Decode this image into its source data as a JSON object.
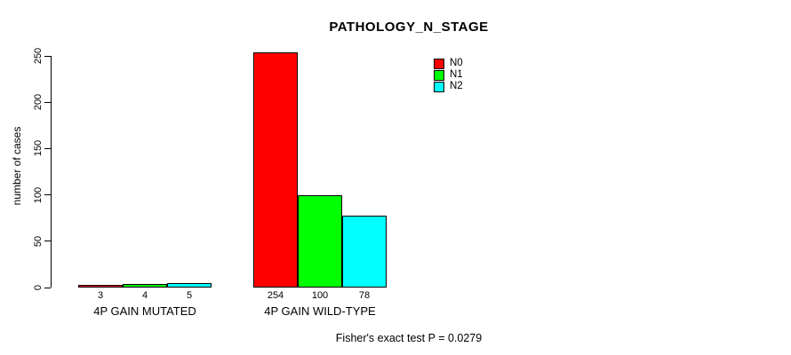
{
  "chart_data": {
    "type": "bar",
    "title": "PATHOLOGY_N_STAGE",
    "ylabel": "number of cases",
    "xlabel": "",
    "ylim": [
      0,
      250
    ],
    "yticks": [
      0,
      50,
      100,
      150,
      200,
      250
    ],
    "grid": false,
    "legend_position": "top-right",
    "categories": [
      "4P GAIN MUTATED",
      "4P GAIN WILD-TYPE"
    ],
    "series": [
      {
        "name": "N0",
        "color": "#ff0000",
        "values": [
          3,
          254
        ]
      },
      {
        "name": "N1",
        "color": "#00ff00",
        "values": [
          4,
          100
        ]
      },
      {
        "name": "N2",
        "color": "#00ffff",
        "values": [
          5,
          78
        ]
      }
    ],
    "bar_value_labels": [
      [
        "3",
        "4",
        "5"
      ],
      [
        "254",
        "100",
        "78"
      ]
    ],
    "footnote": "Fisher's exact test P = 0.0279"
  },
  "colors": {
    "background": "#ffffff",
    "axis": "#000000",
    "text": "#000000"
  }
}
